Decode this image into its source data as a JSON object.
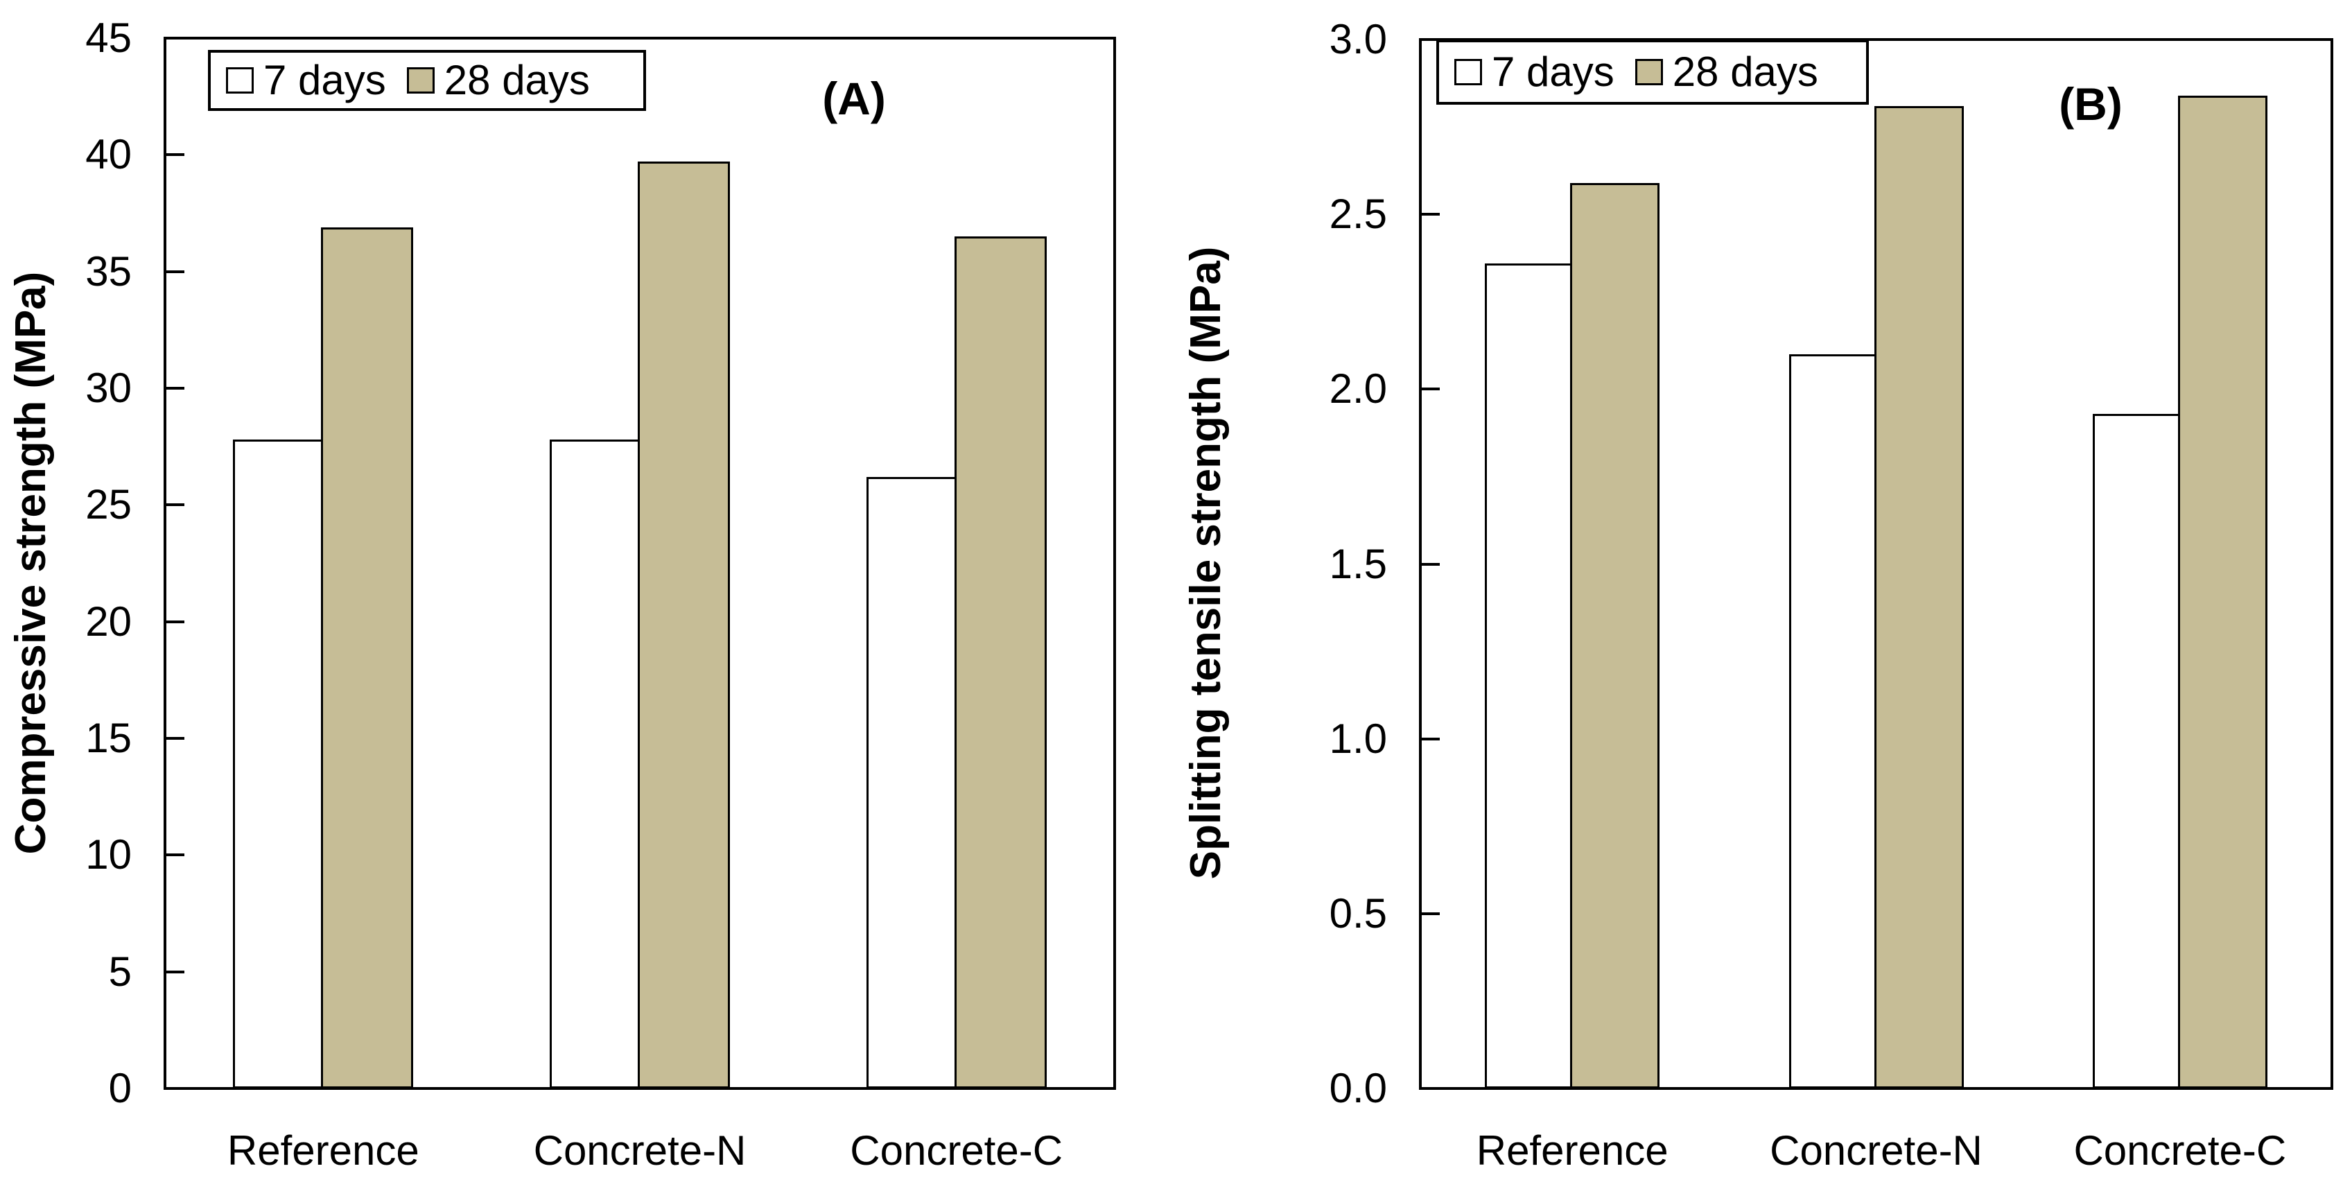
{
  "figure": {
    "background": "#ffffff",
    "stroke_color": "#000000",
    "legend": {
      "items": [
        {
          "label": "7 days",
          "fill": "#FFFFFF",
          "swatch_name": "legend-swatch-7-days"
        },
        {
          "label": "28 days",
          "fill": "#C6BD96",
          "swatch_name": "legend-swatch-28-days"
        }
      ]
    }
  },
  "chart_data": [
    {
      "type": "bar",
      "title": "(A)",
      "categories": [
        "Reference",
        "Concrete-N",
        "Concrete-C"
      ],
      "series": [
        {
          "name": "7 days",
          "fill": "#FFFFFF",
          "values": [
            27.8,
            27.8,
            26.2
          ]
        },
        {
          "name": "28 days",
          "fill": "#C6BD96",
          "values": [
            36.9,
            39.7,
            36.5
          ]
        }
      ],
      "xlabel": "",
      "ylabel": "Compressive strength (MPa)",
      "ylim": [
        0,
        45
      ],
      "ytick_step": 5,
      "ytick_labels": [
        "0",
        "5",
        "10",
        "15",
        "20",
        "25",
        "30",
        "35",
        "40",
        "45"
      ],
      "grid": false,
      "legend_position": "top-left-inside"
    },
    {
      "type": "bar",
      "title": "(B)",
      "categories": [
        "Reference",
        "Concrete-N",
        "Concrete-C"
      ],
      "series": [
        {
          "name": "7 days",
          "fill": "#FFFFFF",
          "values": [
            2.36,
            2.1,
            1.93
          ]
        },
        {
          "name": "28 days",
          "fill": "#C6BD96",
          "values": [
            2.59,
            2.81,
            2.84
          ]
        }
      ],
      "xlabel": "",
      "ylabel": "Splitting tensile strength (MPa)",
      "ylim": [
        0,
        3.0
      ],
      "ytick_step": 0.5,
      "ytick_labels": [
        "0.0",
        "0.5",
        "1.0",
        "1.5",
        "2.0",
        "2.5",
        "3.0"
      ],
      "grid": false,
      "legend_position": "top-left-inside"
    }
  ]
}
